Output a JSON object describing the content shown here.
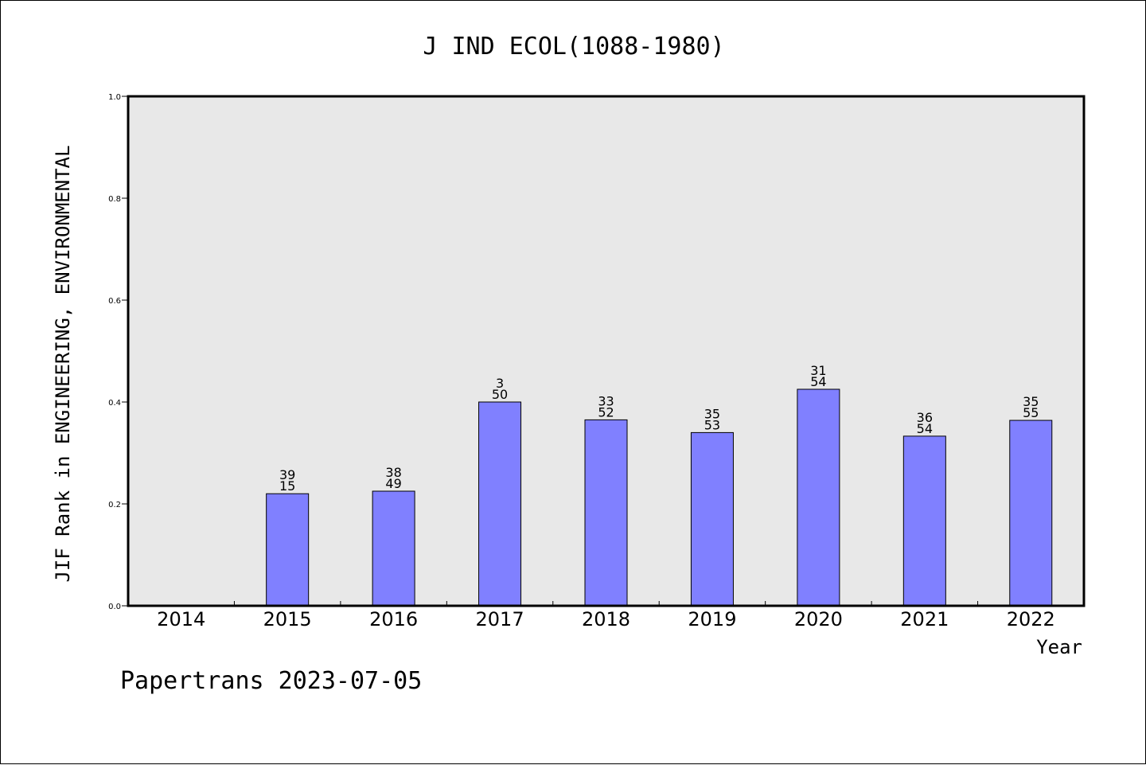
{
  "chart_data": {
    "type": "bar",
    "title": "J IND ECOL(1088-1980)",
    "ylabel": "JIF Rank in ENGINEERING, ENVIRONMENTAL",
    "xlabel": "Year",
    "footer": "Papertrans 2023-07-05",
    "ylim": [
      0,
      1.0
    ],
    "yticks": [
      "0.0",
      "0.2",
      "0.4",
      "0.6",
      "0.8",
      "1.0"
    ],
    "categories": [
      "2014",
      "2015",
      "2016",
      "2017",
      "2018",
      "2019",
      "2020",
      "2021",
      "2022"
    ],
    "values": [
      null,
      0.22,
      0.225,
      0.4,
      0.365,
      0.34,
      0.425,
      0.333,
      0.364
    ],
    "labels_top": [
      "",
      "39",
      "38",
      "3",
      "33",
      "35",
      "31",
      "36",
      "35"
    ],
    "labels_bottom": [
      "",
      "15",
      "49",
      "50",
      "52",
      "53",
      "54",
      "54",
      "55"
    ],
    "grid": false,
    "colors": {
      "bar": "#8080ff",
      "plot_bg": "#e8e8e8"
    }
  }
}
